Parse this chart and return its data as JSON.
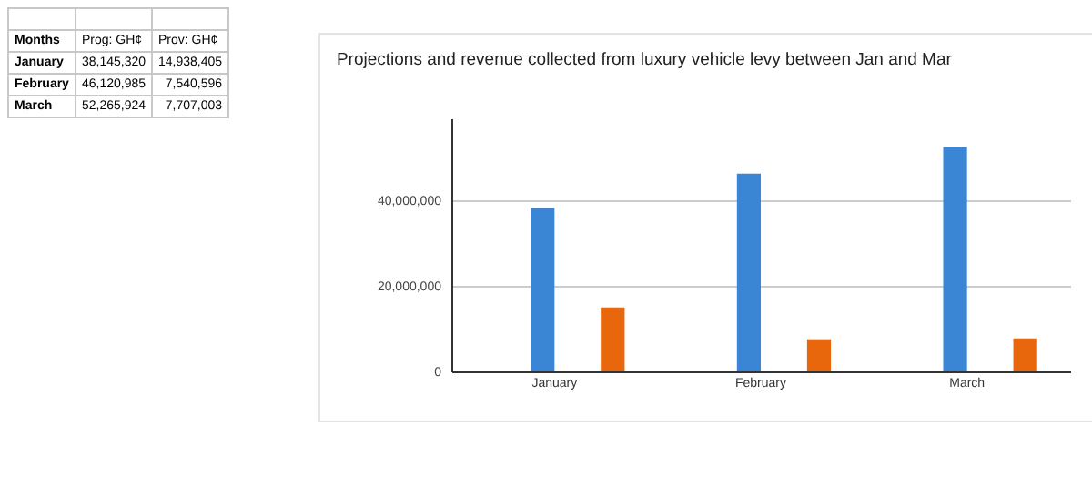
{
  "chart_data": [
    {
      "type": "other",
      "annotations": [
        "Months",
        "Prog: GH¢",
        "Prov: GH¢",
        "January",
        "38,145,320",
        "14,938,405",
        "February",
        "46,120,985",
        "7,540,596",
        "March",
        "52,265,924",
        "7,707,003"
      ]
    },
    {
      "type": "bar",
      "title": "Projections and revenue collected from luxury vehicle levy between Jan and Mar",
      "categories": [
        "January",
        "February",
        "March"
      ],
      "series": [
        {
          "color": "#3a86d4",
          "values": [
            38100000,
            46100000,
            52300000
          ]
        },
        {
          "color": "#e8670c",
          "values": [
            14900000,
            7500000,
            7700000
          ]
        }
      ],
      "ylim": [
        0,
        59000000
      ],
      "yticks": [
        0,
        {
          "value": 20000000,
          "label": "20,000,000"
        },
        {
          "value": 40000000,
          "label": "40,000,000"
        }
      ],
      "grid": "y"
    }
  ]
}
